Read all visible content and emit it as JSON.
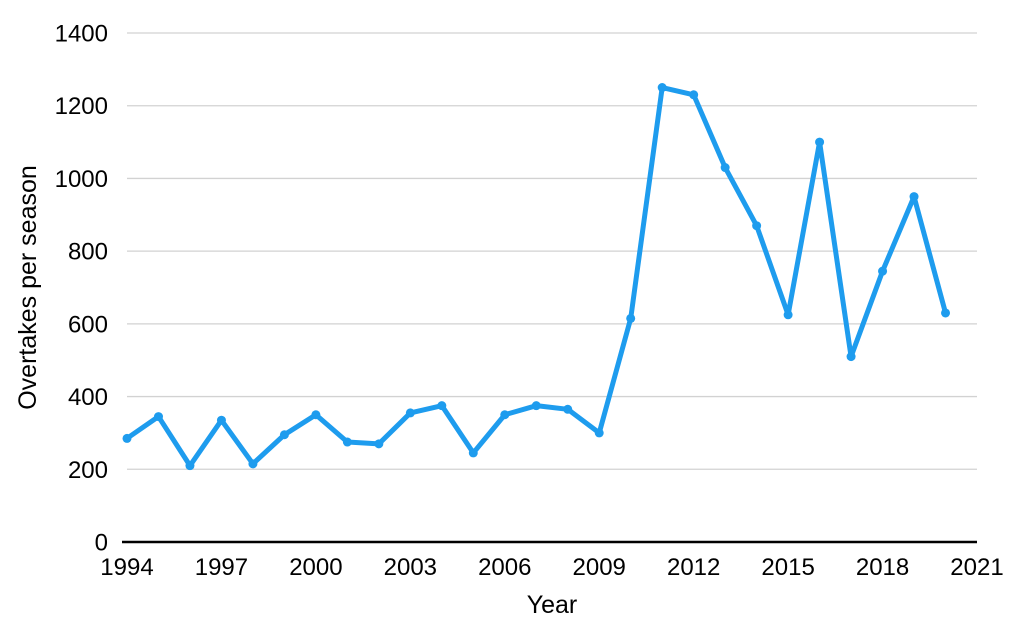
{
  "chart_data": {
    "type": "line",
    "title": "",
    "xlabel": "Year",
    "ylabel": "Overtakes per season",
    "x": [
      1994,
      1995,
      1996,
      1997,
      1998,
      1999,
      2000,
      2001,
      2002,
      2003,
      2004,
      2005,
      2006,
      2007,
      2008,
      2009,
      2010,
      2011,
      2012,
      2013,
      2014,
      2015,
      2016,
      2017,
      2018,
      2019,
      2020
    ],
    "values": [
      285,
      345,
      210,
      335,
      215,
      295,
      350,
      275,
      270,
      355,
      375,
      245,
      350,
      375,
      365,
      300,
      615,
      1250,
      1230,
      1030,
      870,
      625,
      1100,
      510,
      745,
      950,
      630
    ],
    "xlim": [
      1994,
      2021
    ],
    "ylim": [
      0,
      1400
    ],
    "x_ticks": [
      1994,
      1997,
      2000,
      2003,
      2006,
      2009,
      2012,
      2015,
      2018,
      2021
    ],
    "y_ticks": [
      0,
      200,
      400,
      600,
      800,
      1000,
      1200,
      1400
    ],
    "grid": "horizontal",
    "legend": "none",
    "colors": {
      "line": "#1E9CEE",
      "grid": "#D2D2D2",
      "axis": "#000000",
      "text": "#000000",
      "background": "#FFFFFF"
    }
  }
}
